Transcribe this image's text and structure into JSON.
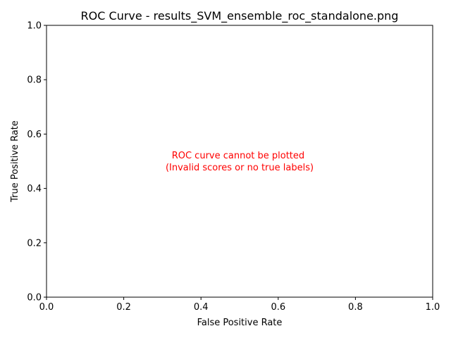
{
  "chart_data": {
    "type": "line",
    "title": "ROC Curve - results_SVM_ensemble_roc_standalone.png",
    "xlabel": "False Positive Rate",
    "ylabel": "True Positive Rate",
    "xlim": [
      0.0,
      1.0
    ],
    "ylim": [
      0.0,
      1.0
    ],
    "xticks": [
      "0.0",
      "0.2",
      "0.4",
      "0.6",
      "0.8",
      "1.0"
    ],
    "yticks": [
      "0.0",
      "0.2",
      "0.4",
      "0.6",
      "0.8",
      "1.0"
    ],
    "xtick_values": [
      0.0,
      0.2,
      0.4,
      0.6,
      0.8,
      1.0
    ],
    "ytick_values": [
      0.0,
      0.2,
      0.4,
      0.6,
      0.8,
      1.0
    ],
    "grid": false,
    "series": [],
    "annotation": {
      "lines": [
        "ROC curve cannot be plotted",
        "(Invalid scores or no true labels)"
      ],
      "x": 0.5,
      "y": 0.5,
      "color": "#ff0000"
    }
  }
}
